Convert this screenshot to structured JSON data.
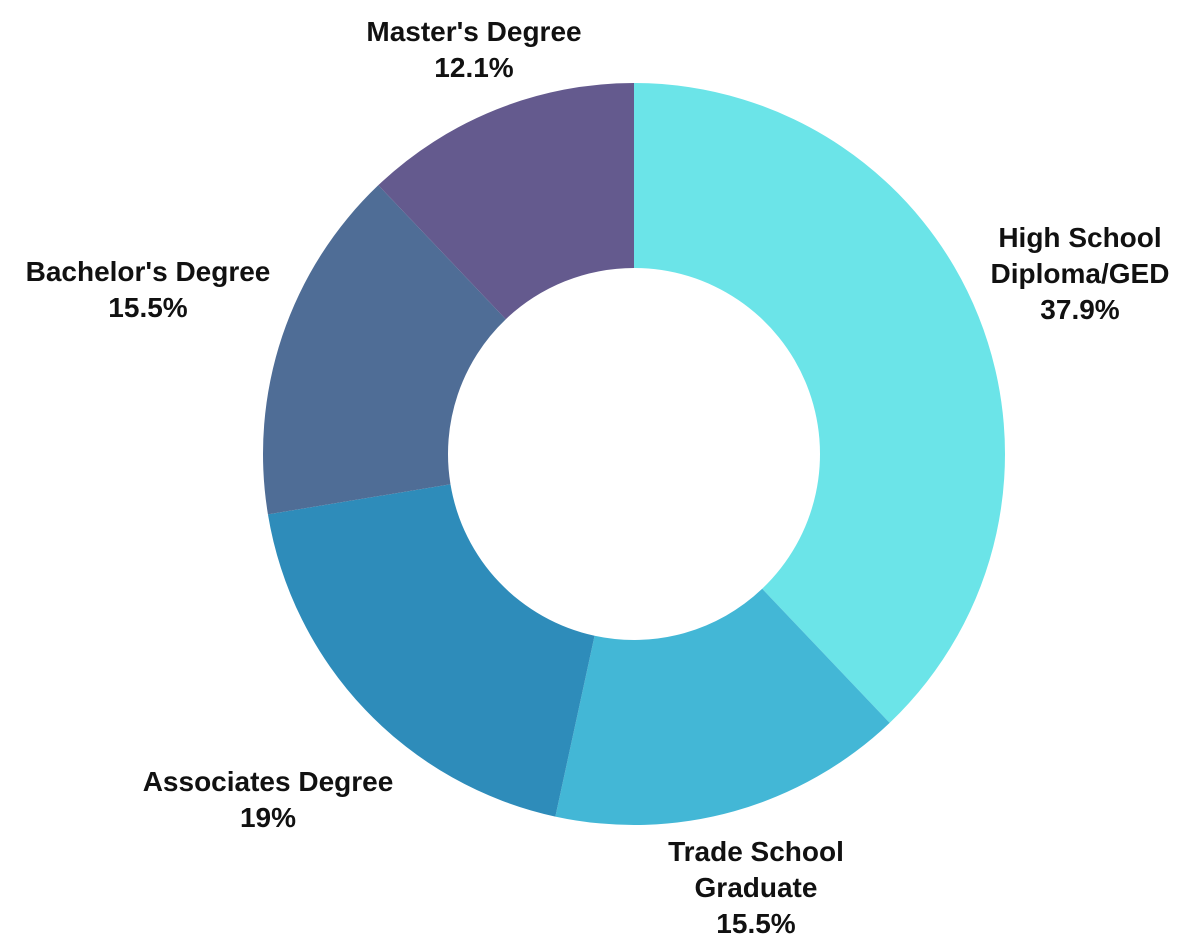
{
  "chart_data": {
    "type": "donut",
    "categories": [
      "High School Diploma/GED",
      "Trade School Graduate",
      "Associates Degree",
      "Bachelor's Degree",
      "Master's Degree"
    ],
    "values": [
      37.9,
      15.5,
      19,
      15.5,
      12.1
    ],
    "value_labels": [
      "37.9%",
      "15.5%",
      "19%",
      "15.5%",
      "12.1%"
    ],
    "colors": [
      "#6be4e8",
      "#43b7d6",
      "#2e8cba",
      "#4f6d96",
      "#645a8e"
    ]
  }
}
